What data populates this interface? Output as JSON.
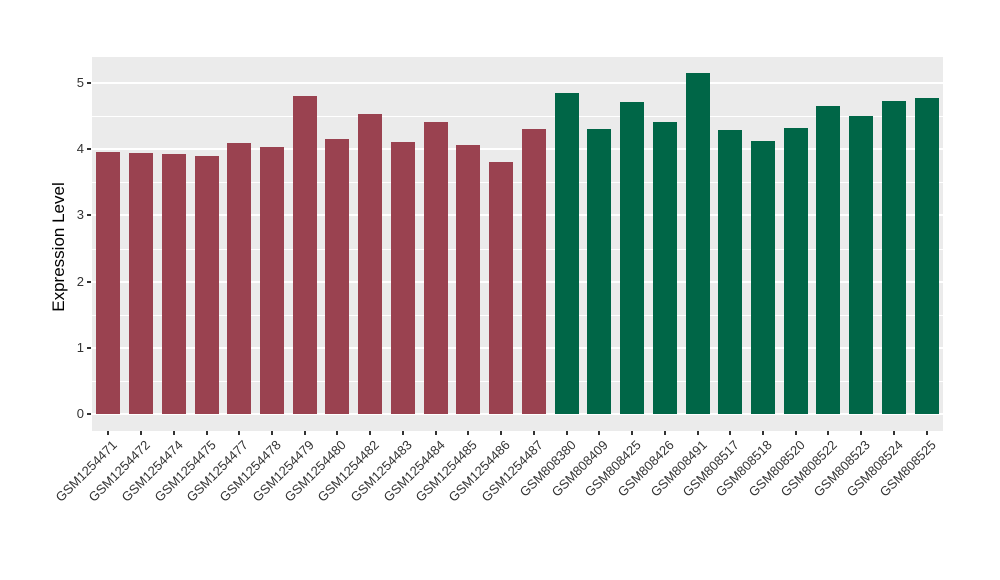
{
  "chart_data": {
    "type": "bar",
    "title": "",
    "xlabel": "",
    "ylabel": "Expression Level",
    "ylim": [
      0,
      5.35
    ],
    "yticks": [
      0,
      1,
      2,
      3,
      4,
      5
    ],
    "minor_gridlines": [
      0.5,
      1.5,
      2.5,
      3.5,
      4.5
    ],
    "grid": "on",
    "legend_position": "none",
    "categories": [
      "GSM1254471",
      "GSM1254472",
      "GSM1254474",
      "GSM1254475",
      "GSM1254477",
      "GSM1254478",
      "GSM1254479",
      "GSM1254480",
      "GSM1254482",
      "GSM1254483",
      "GSM1254484",
      "GSM1254485",
      "GSM1254486",
      "GSM1254487",
      "GSM808380",
      "GSM808409",
      "GSM808425",
      "GSM808426",
      "GSM808491",
      "GSM808517",
      "GSM808518",
      "GSM808520",
      "GSM808522",
      "GSM808523",
      "GSM808524",
      "GSM808525"
    ],
    "values": [
      3.96,
      3.94,
      3.92,
      3.89,
      4.09,
      4.03,
      4.8,
      4.15,
      4.53,
      4.11,
      4.41,
      4.07,
      3.8,
      4.3,
      4.85,
      4.31,
      4.72,
      4.41,
      5.15,
      4.29,
      4.13,
      4.32,
      4.65,
      4.5,
      4.73,
      4.78
    ],
    "groups": [
      "maroon",
      "maroon",
      "maroon",
      "maroon",
      "maroon",
      "maroon",
      "maroon",
      "maroon",
      "maroon",
      "maroon",
      "maroon",
      "maroon",
      "maroon",
      "maroon",
      "green",
      "green",
      "green",
      "green",
      "green",
      "green",
      "green",
      "green",
      "green",
      "green",
      "green",
      "green"
    ],
    "colors": {
      "maroon": "#9A4250",
      "green": "#006647",
      "panel_background": "#EBEBEB",
      "gridline": "#FFFFFF",
      "tick_text": "#333333",
      "axis_title_text": "#000000"
    }
  }
}
